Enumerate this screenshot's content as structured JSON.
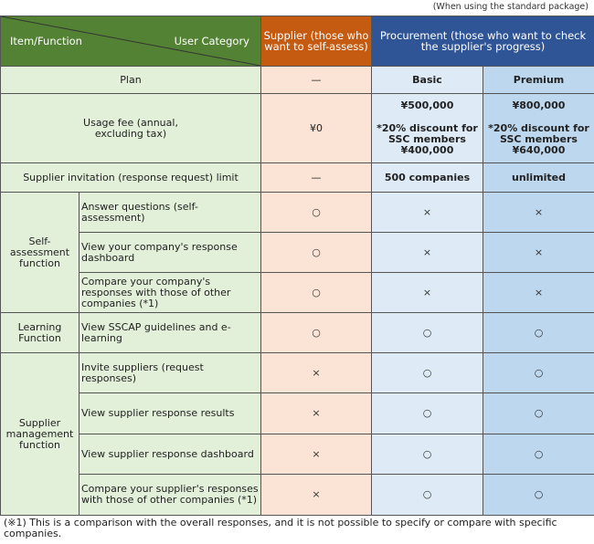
{
  "note": "(When using the standard package)",
  "header": {
    "item_function": "Item/Function",
    "user_category": "User Category",
    "supplier": "Supplier (those who want to self-assess)",
    "procurement": "Procurement (those who want to check the supplier's progress)"
  },
  "plan": {
    "label": "Plan",
    "supplier": "—",
    "basic": "Basic",
    "premium": "Premium"
  },
  "fee": {
    "label": "Usage fee (annual, excluding tax)",
    "supplier": "¥0",
    "basic_price": "¥500,000",
    "basic_discount": "*20% discount for SSC members ¥400,000",
    "premium_price": "¥800,000",
    "premium_discount": "*20% discount for SSC members ¥640,000"
  },
  "limit": {
    "label": "Supplier invitation (response request) limit",
    "supplier": "—",
    "basic": "500 companies",
    "premium": "unlimited"
  },
  "groups": {
    "self": "Self-assessment function",
    "learning": "Learning Function",
    "management": "Supplier management function"
  },
  "rows": [
    {
      "label": "Answer questions (self-assessment)",
      "supplier": "○",
      "basic": "×",
      "premium": "×"
    },
    {
      "label": "View your company's response dashboard",
      "supplier": "○",
      "basic": "×",
      "premium": "×"
    },
    {
      "label": "Compare your company's responses with those of other companies (*1)",
      "supplier": "○",
      "basic": "×",
      "premium": "×"
    },
    {
      "label": "View SSCAP guidelines and e-learning",
      "supplier": "○",
      "basic": "○",
      "premium": "○"
    },
    {
      "label": "Invite suppliers (request responses)",
      "supplier": "×",
      "basic": "○",
      "premium": "○"
    },
    {
      "label": "View supplier response results",
      "supplier": "×",
      "basic": "○",
      "premium": "○"
    },
    {
      "label": "View supplier response dashboard",
      "supplier": "×",
      "basic": "○",
      "premium": "○"
    },
    {
      "label": "Compare your supplier's responses with those of other companies (*1)",
      "supplier": "×",
      "basic": "○",
      "premium": "○"
    }
  ],
  "footnote": "(※1) This is a comparison with the overall responses, and it is not possible to specify or compare with specific companies."
}
